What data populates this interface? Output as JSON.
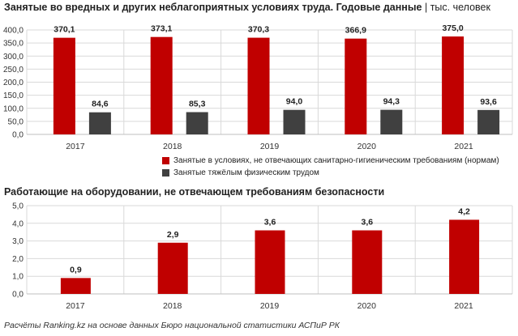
{
  "chart_data": [
    {
      "type": "bar",
      "title": "Занятые во вредных и других неблагоприятных условиях труда. Годовые данные",
      "subtitle": "тыс. человек",
      "categories": [
        "2017",
        "2018",
        "2019",
        "2020",
        "2021"
      ],
      "series": [
        {
          "name": "Занятые в условиях, не отвечающих санитарно-гигиеническим требованиям (нормам)",
          "color": "#c00000",
          "values": [
            370.1,
            373.1,
            370.3,
            366.9,
            375.0
          ],
          "labels": [
            "370,1",
            "373,1",
            "370,3",
            "366,9",
            "375,0"
          ]
        },
        {
          "name": "Занятые тяжёлым физическим трудом",
          "color": "#404040",
          "values": [
            84.6,
            85.3,
            94.0,
            94.3,
            93.6
          ],
          "labels": [
            "84,6",
            "85,3",
            "94,0",
            "94,3",
            "93,6"
          ]
        }
      ],
      "ylim": [
        0,
        400
      ],
      "yticks": [
        "0,0",
        "50,0",
        "100,0",
        "150,0",
        "200,0",
        "250,0",
        "300,0",
        "350,0",
        "400,0"
      ],
      "grid": true,
      "legend": "bottom"
    },
    {
      "type": "bar",
      "title": "Работающие на оборудовании, не отвечающем требованиям безопасности",
      "categories": [
        "2017",
        "2018",
        "2019",
        "2020",
        "2021"
      ],
      "series": [
        {
          "color": "#c00000",
          "values": [
            0.9,
            2.9,
            3.6,
            3.6,
            4.2
          ],
          "labels": [
            "0,9",
            "2,9",
            "3,6",
            "3,6",
            "4,2"
          ]
        }
      ],
      "ylim": [
        0,
        5
      ],
      "yticks": [
        "0,0",
        "1,0",
        "2,0",
        "3,0",
        "4,0",
        "5,0"
      ],
      "grid": true
    }
  ],
  "source": "Расчёты Ranking.kz на основе данных Бюро национальной статистики АСПиР РК"
}
